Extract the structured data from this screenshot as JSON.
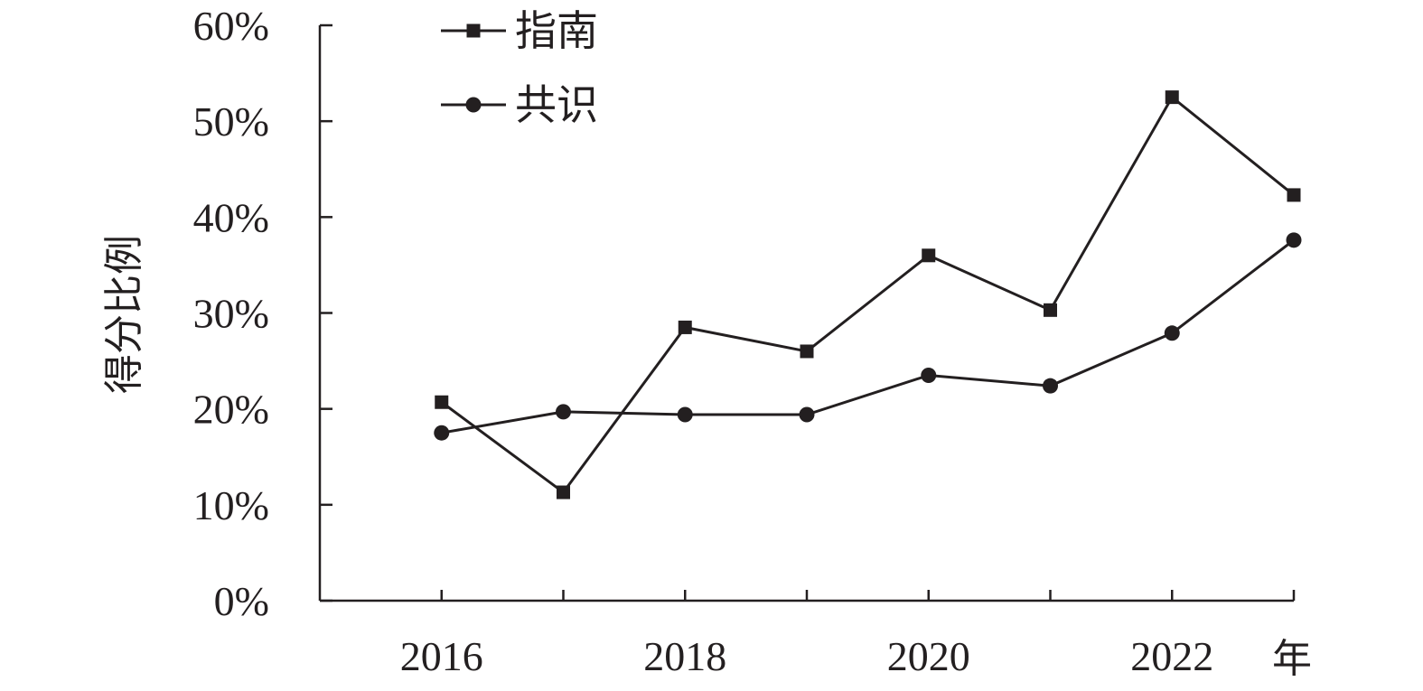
{
  "chart_data": {
    "type": "line",
    "x": [
      2016,
      2017,
      2018,
      2019,
      2020,
      2021,
      2022,
      2023
    ],
    "x_tick_labels": [
      "2016",
      "2018",
      "2020",
      "2022"
    ],
    "x_ticks": [
      2016,
      2018,
      2020,
      2022
    ],
    "xlabel": "年",
    "ylabel": "得分比例",
    "y_tick_labels": [
      "0%",
      "10%",
      "20%",
      "30%",
      "40%",
      "50%",
      "60%"
    ],
    "y_ticks": [
      0,
      10,
      20,
      30,
      40,
      50,
      60
    ],
    "ylim": [
      0,
      60
    ],
    "xlim": [
      2015,
      2023.0
    ],
    "series": [
      {
        "name": "指南",
        "marker": "square",
        "values": [
          20.7,
          11.3,
          28.5,
          26.0,
          36.0,
          30.3,
          52.5,
          42.3
        ]
      },
      {
        "name": "共识",
        "marker": "circle",
        "values": [
          17.5,
          19.7,
          19.4,
          19.4,
          23.5,
          22.4,
          27.9,
          37.6
        ]
      }
    ],
    "legend_position": "top-left",
    "grid": false,
    "colors": {
      "ink": "#231f20"
    }
  }
}
